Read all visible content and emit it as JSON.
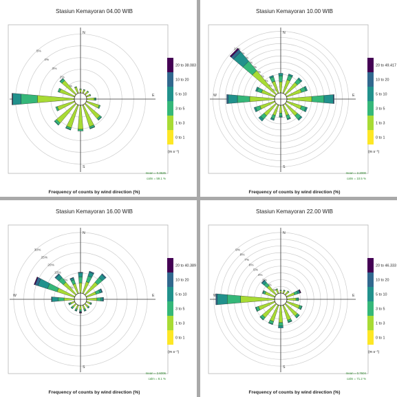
{
  "colors": {
    "c01": "#fde725",
    "c13": "#a8db34",
    "c35": "#35b779",
    "c510": "#21918c",
    "c1020": "#31688e",
    "c20plus": "#440154",
    "axis": "#333333",
    "grid": "#cccccc",
    "stat": "#2e8b2e"
  },
  "directions": [
    "N",
    "NNE",
    "NE",
    "ENE",
    "E",
    "ESE",
    "SE",
    "SSE",
    "S",
    "SSW",
    "SW",
    "WSW",
    "W",
    "WNW",
    "NW",
    "NNW"
  ],
  "compass_labels": [
    "N",
    "E",
    "S",
    "W"
  ],
  "unit_label": "(m s⁻¹)",
  "subtitle": "Frequency of counts by wind direction (%)",
  "legend_bins": [
    "0 to 1",
    "1 to 3",
    "3 to 5",
    "5 to 10",
    "10 to 20"
  ],
  "chart_data": [
    {
      "type": "windrose",
      "title": "Stasiun Kemayoran 04.00 WIB",
      "xlabel": "Frequency of counts by wind direction (%)",
      "max_bin_label": "20 to 38.083",
      "rings": [
        1,
        2,
        3,
        4,
        5
      ],
      "ring_labels": [
        "1%",
        "2%",
        "3%",
        "4%",
        "5%"
      ],
      "max_pct": 5.5,
      "mean_text": "mean = 0.3625",
      "calm_text": "calm = 59.1 %",
      "frequencies": {
        "N": [
          0.05,
          0.25,
          0.05,
          0,
          0,
          0
        ],
        "NNE": [
          0.05,
          0.25,
          0.05,
          0,
          0,
          0
        ],
        "NE": [
          0.05,
          0.3,
          0.05,
          0,
          0,
          0
        ],
        "ENE": [
          0.05,
          0.3,
          0.05,
          0,
          0,
          0
        ],
        "E": [
          0.05,
          0.6,
          0.1,
          0.05,
          0,
          0
        ],
        "ESE": [
          0.05,
          1.1,
          0.1,
          0,
          0,
          0
        ],
        "SE": [
          0.05,
          1.6,
          0.15,
          0.05,
          0,
          0
        ],
        "SSE": [
          0.05,
          1.9,
          0.15,
          0.05,
          0,
          0
        ],
        "S": [
          0.05,
          2.0,
          0.15,
          0,
          0,
          0
        ],
        "SSW": [
          0.05,
          2.0,
          0.15,
          0.05,
          0,
          0
        ],
        "SW": [
          0.05,
          2.1,
          0.2,
          0.05,
          0,
          0
        ],
        "WSW": [
          0.05,
          1.5,
          0.15,
          0,
          0,
          0
        ],
        "W": [
          0.05,
          3.1,
          1.4,
          0.7,
          0.05,
          0.02
        ],
        "WNW": [
          0.05,
          1.3,
          0.15,
          0,
          0,
          0
        ],
        "NW": [
          0.05,
          1.5,
          0.2,
          0.05,
          0,
          0
        ],
        "NNW": [
          0.05,
          0.5,
          0.05,
          0,
          0,
          0
        ]
      }
    },
    {
      "type": "windrose",
      "title": "Stasiun Kemayoran 10.00 WIB",
      "xlabel": "Frequency of counts by wind direction (%)",
      "max_bin_label": "20 to 49.417",
      "rings": [
        2,
        4,
        6,
        8,
        10,
        12,
        14,
        16,
        18,
        20
      ],
      "ring_labels": [
        "2%",
        "4%",
        "6%",
        "8%",
        "10%",
        "12%",
        "14%",
        "16%",
        "18%",
        "20%"
      ],
      "max_pct": 21,
      "mean_text": "mean = 2.2000",
      "calm_text": "calm = 10.5 %",
      "frequencies": {
        "N": [
          0.1,
          3.5,
          2.0,
          0.8,
          0,
          0
        ],
        "NNE": [
          0.1,
          4.5,
          1.5,
          0.5,
          0,
          0
        ],
        "NE": [
          0.1,
          5.0,
          1.5,
          0.5,
          0,
          0
        ],
        "ENE": [
          0.1,
          5.0,
          1.5,
          0.5,
          0,
          0
        ],
        "E": [
          0.1,
          8.0,
          4.0,
          3.0,
          0.3,
          0
        ],
        "ESE": [
          0.1,
          5.0,
          1.5,
          0.5,
          0,
          0
        ],
        "SE": [
          0.1,
          5.0,
          1.5,
          0.5,
          0,
          0
        ],
        "SSE": [
          0.1,
          3.5,
          1.2,
          0.3,
          0,
          0
        ],
        "S": [
          0.1,
          2.5,
          1.0,
          0.3,
          0,
          0
        ],
        "SSW": [
          0.1,
          3.5,
          1.2,
          0.5,
          0,
          0
        ],
        "SW": [
          0.1,
          5.0,
          1.5,
          0.8,
          0,
          0
        ],
        "WSW": [
          0.1,
          5.0,
          1.5,
          0.5,
          0,
          0
        ],
        "W": [
          0.1,
          8.0,
          4.0,
          3.0,
          0.5,
          0
        ],
        "WNW": [
          0.1,
          4.5,
          1.5,
          0.5,
          0,
          0
        ],
        "NW": [
          0.1,
          10.0,
          4.0,
          4.0,
          1.0,
          0.5
        ],
        "NNW": [
          0.1,
          4.0,
          1.5,
          0.5,
          0,
          0
        ]
      }
    },
    {
      "type": "windrose",
      "title": "Stasiun Kemayoran 16.00 WIB",
      "xlabel": "Frequency of counts by wind direction (%)",
      "max_bin_label": "20 to 40.389",
      "rings": [
        5,
        10,
        15,
        20,
        25,
        30
      ],
      "ring_labels": [
        "5%",
        "10%",
        "15%",
        "20%",
        "25%",
        "30%"
      ],
      "max_pct": 32,
      "mean_text": "mean = 2.6006",
      "calm_text": "calm = 8.1 %",
      "frequencies": {
        "N": [
          0.1,
          5.0,
          3.0,
          2.0,
          0.3,
          0
        ],
        "NNE": [
          0.1,
          6.0,
          3.0,
          2.0,
          0.5,
          0
        ],
        "NE": [
          0.1,
          8.0,
          3.0,
          2.0,
          0.5,
          0
        ],
        "ENE": [
          0.1,
          5.0,
          2.0,
          1.0,
          0.3,
          0
        ],
        "E": [
          0.1,
          5.0,
          2.0,
          1.0,
          0.3,
          0
        ],
        "ESE": [
          0.1,
          2.0,
          0.5,
          0.2,
          0,
          0
        ],
        "SE": [
          0.1,
          2.0,
          0.5,
          0.2,
          0,
          0
        ],
        "SSE": [
          0.1,
          2.0,
          0.8,
          0.3,
          0,
          0
        ],
        "S": [
          0.1,
          2.0,
          0.8,
          0.3,
          0.3,
          0.3
        ],
        "SSW": [
          0.1,
          2.0,
          0.8,
          0.3,
          0,
          0
        ],
        "SW": [
          0.1,
          2.0,
          0.8,
          0.3,
          0,
          0
        ],
        "WSW": [
          0.1,
          2.0,
          0.8,
          0.3,
          0,
          0
        ],
        "W": [
          0.1,
          5.0,
          3.0,
          3.0,
          0.3,
          0
        ],
        "WNW": [
          0.1,
          9.0,
          5.0,
          5.0,
          1.5,
          0.5
        ],
        "NW": [
          0.1,
          8.0,
          3.0,
          2.0,
          0.5,
          0
        ],
        "NNW": [
          0.1,
          5.0,
          2.0,
          1.0,
          0.3,
          0
        ]
      }
    },
    {
      "type": "windrose",
      "title": "Stasiun Kemayoran 22.00 WIB",
      "xlabel": "Frequency of counts by wind direction (%)",
      "max_bin_label": "20 to 46.333",
      "rings": [
        1,
        2,
        3,
        4,
        5,
        6,
        7,
        8,
        9
      ],
      "ring_labels": [
        "1%",
        "2%",
        "3%",
        "4%",
        "5%",
        "6%",
        "7%",
        "8%",
        "9%"
      ],
      "max_pct": 9.6,
      "mean_text": "mean = 0.7604",
      "calm_text": "calm = 71.2 %",
      "frequencies": {
        "N": [
          0.05,
          0.3,
          0.1,
          0,
          0,
          0
        ],
        "NNE": [
          0.05,
          0.4,
          0.1,
          0,
          0,
          0
        ],
        "NE": [
          0.05,
          0.6,
          0.1,
          0,
          0,
          0
        ],
        "ENE": [
          0.05,
          1.2,
          0.5,
          0.3,
          0.1,
          0.1
        ],
        "E": [
          0.05,
          1.3,
          0.3,
          0.1,
          0,
          0
        ],
        "ESE": [
          0.05,
          2.0,
          0.3,
          0.1,
          0,
          0
        ],
        "SE": [
          0.05,
          2.3,
          0.3,
          0.1,
          0,
          0
        ],
        "SSE": [
          0.05,
          2.3,
          0.3,
          0.1,
          0,
          0
        ],
        "S": [
          0.05,
          2.5,
          0.5,
          0.3,
          0,
          0
        ],
        "SSW": [
          0.05,
          2.5,
          0.4,
          0.1,
          0,
          0
        ],
        "SW": [
          0.05,
          2.6,
          0.4,
          0.1,
          0,
          0
        ],
        "WSW": [
          0.05,
          2.5,
          0.4,
          0.1,
          0,
          0
        ],
        "W": [
          0.05,
          5.0,
          2.0,
          1.5,
          0.2,
          0
        ],
        "WNW": [
          0.05,
          1.5,
          0.3,
          0.1,
          0,
          0
        ],
        "NW": [
          0.05,
          1.7,
          0.6,
          0.4,
          0.1,
          0
        ],
        "NNW": [
          0.05,
          0.6,
          0.1,
          0,
          0,
          0
        ]
      }
    }
  ]
}
